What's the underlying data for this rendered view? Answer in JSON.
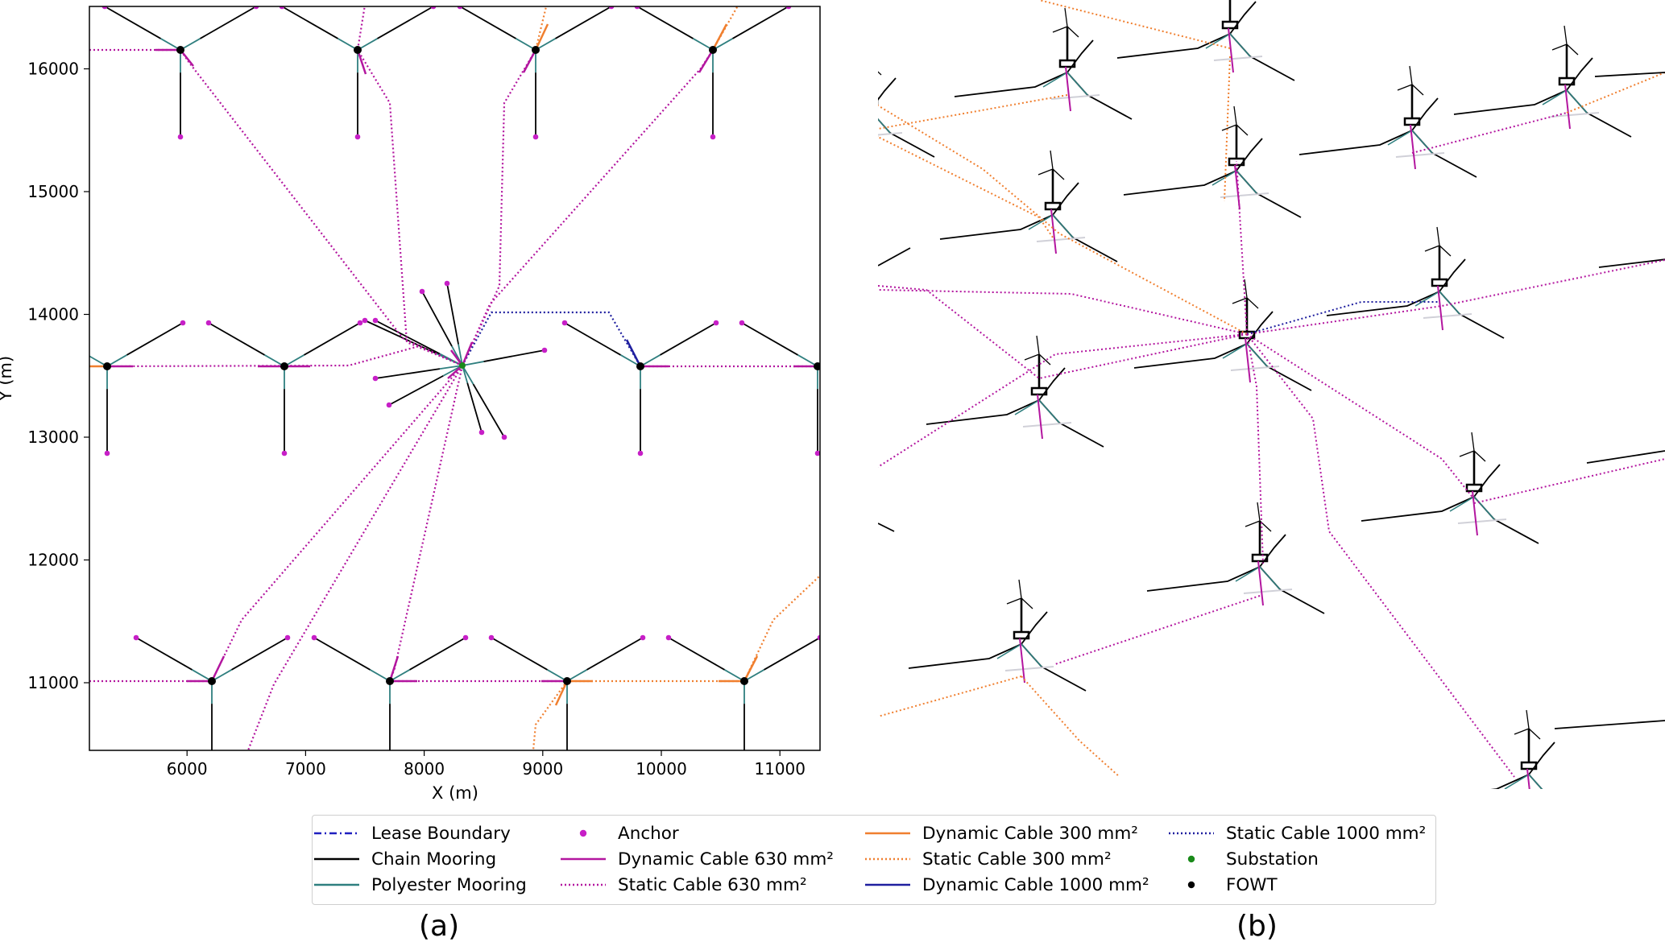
{
  "panel_a": {
    "label": "(a)",
    "xlabel": "X (m)",
    "ylabel": "Y (m)",
    "xticks": [
      "6000",
      "7000",
      "8000",
      "9000",
      "10000",
      "11000"
    ],
    "yticks": [
      "11000",
      "12000",
      "13000",
      "14000",
      "15000",
      "16000"
    ]
  },
  "panel_b": {
    "label": "(b)"
  },
  "legend": [
    {
      "label": "Lease Boundary",
      "style": "dashdot",
      "color": "#1f1fbf"
    },
    {
      "label": "Chain Mooring",
      "style": "solid",
      "color": "#000000"
    },
    {
      "label": "Polyester Mooring",
      "style": "solid",
      "color": "#2f7f7f"
    },
    {
      "label": "Anchor",
      "style": "dot",
      "color": "#c71fc7"
    },
    {
      "label": "Dynamic Cable 630 mm²",
      "style": "solid",
      "color": "#b3169f"
    },
    {
      "label": "Static Cable 630 mm²",
      "style": "dotted",
      "color": "#b3169f"
    },
    {
      "label": "Dynamic Cable 300 mm²",
      "style": "solid",
      "color": "#f07f2f"
    },
    {
      "label": "Static Cable 300 mm²",
      "style": "dotted",
      "color": "#f07f2f"
    },
    {
      "label": "Dynamic Cable 1000 mm²",
      "style": "solid",
      "color": "#1f1f9f"
    },
    {
      "label": "Static Cable 1000 mm²",
      "style": "dotted",
      "color": "#1f1f9f"
    },
    {
      "label": "Substation",
      "style": "dot",
      "color": "#1a8a1a"
    },
    {
      "label": "FOWT",
      "style": "dot",
      "color": "#000000"
    }
  ],
  "colors": {
    "chain": "#000000",
    "polyester": "#2f7f7f",
    "cable630": "#b3169f",
    "cable300": "#f07f2f",
    "cable1000": "#1f1f9f",
    "anchor": "#c71fc7",
    "substation": "#1a8a1a",
    "fowt": "#000000"
  }
}
